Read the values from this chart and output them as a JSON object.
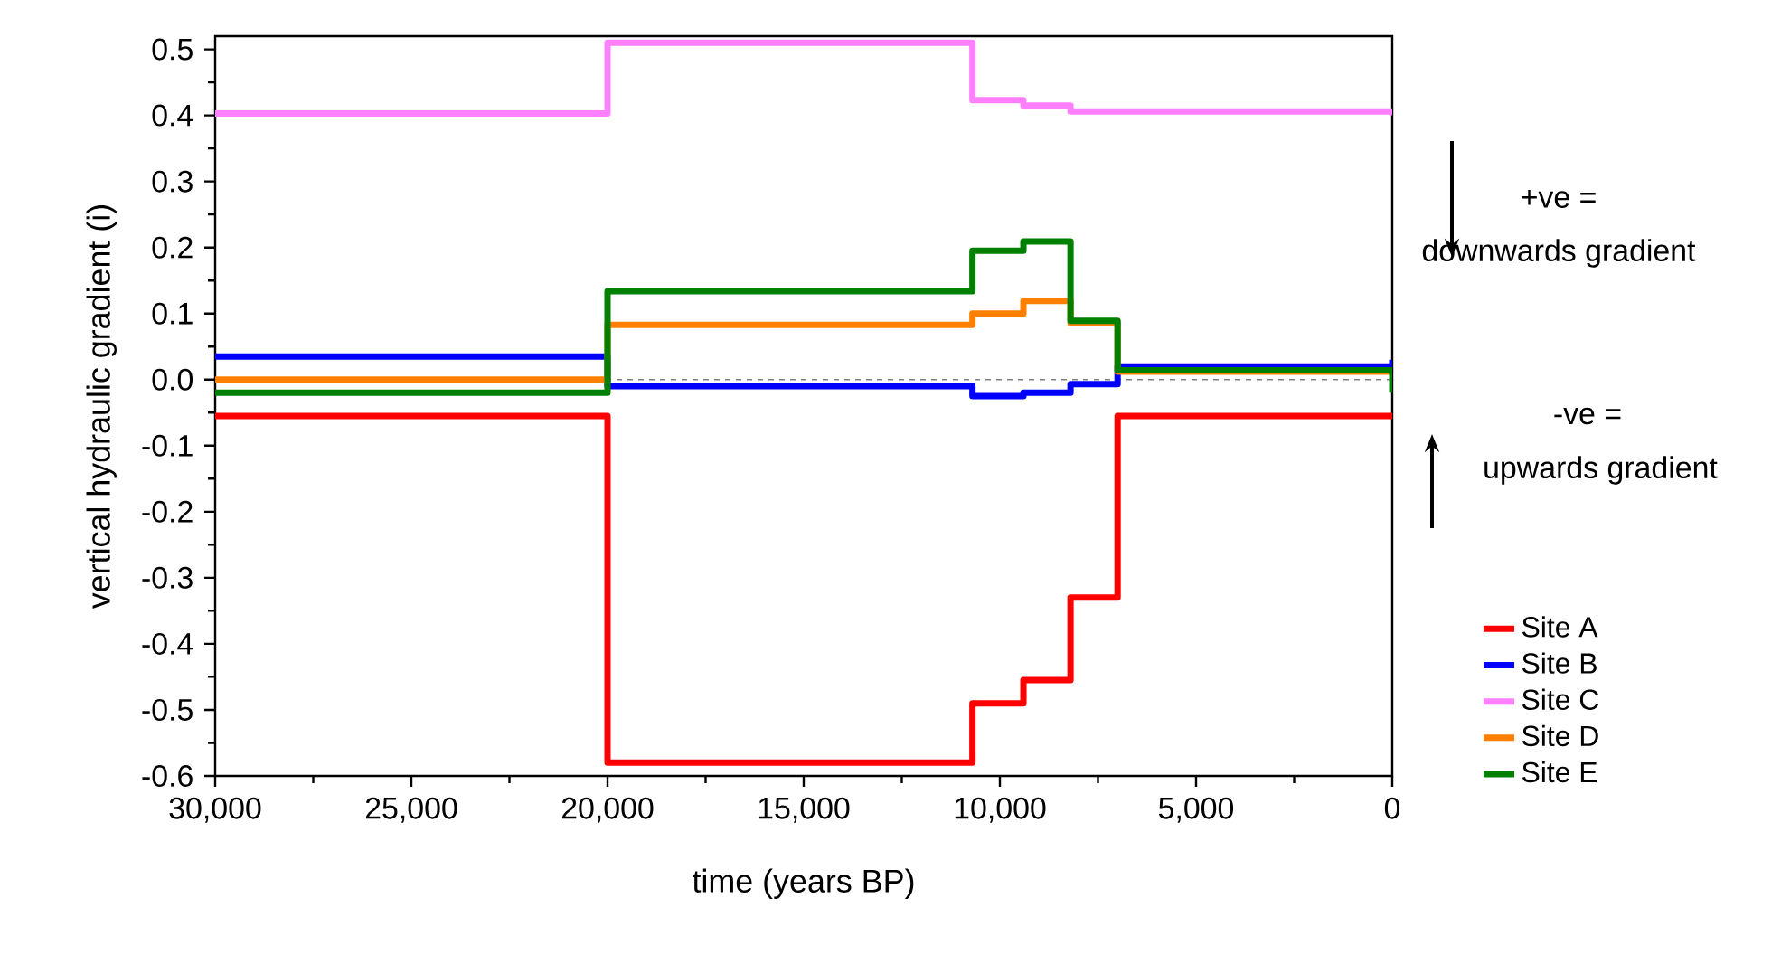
{
  "chart_data": {
    "type": "step",
    "xlabel": "time (years BP)",
    "ylabel": "vertical hydraulic gradient (i)",
    "x": [
      30000,
      20000,
      10700,
      9400,
      8200,
      7000,
      0
    ],
    "series": [
      {
        "name": "Site A",
        "color": "#ff0000",
        "values": [
          -0.055,
          -0.58,
          -0.49,
          -0.455,
          -0.33,
          -0.055,
          -0.055
        ]
      },
      {
        "name": "Site B",
        "color": "#0000ff",
        "values": [
          0.035,
          -0.01,
          -0.025,
          -0.02,
          -0.007,
          0.02,
          0.03
        ]
      },
      {
        "name": "Site C",
        "color": "#ff80ff",
        "values": [
          0.403,
          0.51,
          0.423,
          0.415,
          0.406,
          0.406,
          0.4
        ]
      },
      {
        "name": "Site D",
        "color": "#ff8000",
        "values": [
          0.0,
          0.083,
          0.1,
          0.119,
          0.086,
          0.012,
          0.012
        ]
      },
      {
        "name": "Site E",
        "color": "#008000",
        "values": [
          -0.02,
          0.134,
          0.195,
          0.209,
          0.089,
          0.014,
          -0.02
        ]
      }
    ],
    "xlim": [
      30000,
      0
    ],
    "xticks": [
      {
        "value": 30000,
        "label": "30,000"
      },
      {
        "value": 25000,
        "label": "25,000"
      },
      {
        "value": 20000,
        "label": "20,000"
      },
      {
        "value": 15000,
        "label": "15,000"
      },
      {
        "value": 10000,
        "label": "10,000"
      },
      {
        "value": 5000,
        "label": "5,000"
      },
      0
    ],
    "ylim": [
      -0.6,
      0.52
    ],
    "yticks": [
      {
        "value": -0.6,
        "label": "-0.6"
      },
      {
        "value": -0.5,
        "label": "-0.5"
      },
      {
        "value": -0.4,
        "label": "-0.4"
      },
      {
        "value": -0.3,
        "label": "-0.3"
      },
      {
        "value": -0.2,
        "label": "-0.2"
      },
      {
        "value": -0.1,
        "label": "-0.1"
      },
      {
        "value": 0,
        "label": "0.0"
      },
      {
        "value": 0.1,
        "label": "0.1"
      },
      {
        "value": 0.2,
        "label": "0.2"
      },
      {
        "value": 0.3,
        "label": "0.3"
      },
      {
        "value": 0.4,
        "label": "0.4"
      },
      {
        "value": 0.5,
        "label": "0.5"
      }
    ],
    "ref_lines": [
      {
        "axis": "y",
        "value": 0,
        "color": "#808080",
        "line_style": "dashed"
      }
    ],
    "annotations": [
      "+ve  =",
      "downwards gradient",
      "-ve =",
      "upwards gradient"
    ],
    "legend": "right",
    "grid": false,
    "marker": "none",
    "line_style": "solid"
  }
}
